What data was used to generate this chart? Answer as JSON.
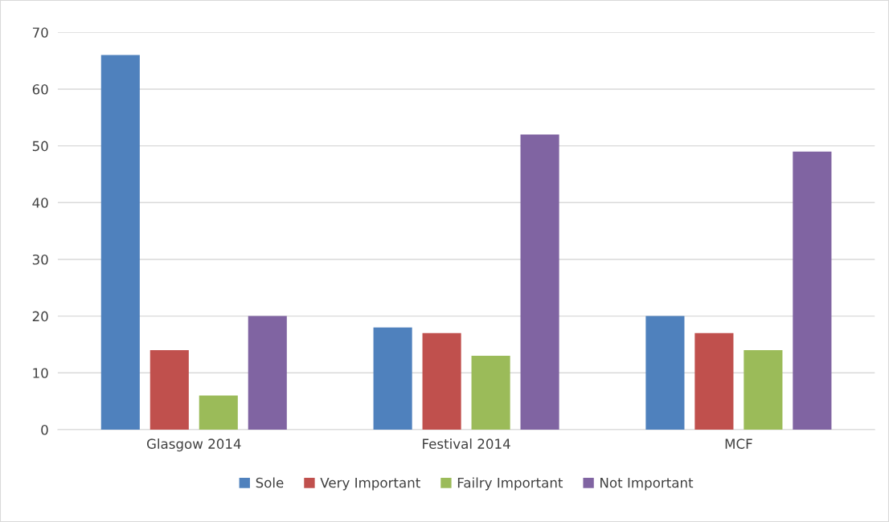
{
  "chart_data": {
    "type": "bar",
    "categories": [
      "Glasgow 2014",
      "Festival 2014",
      "MCF"
    ],
    "series": [
      {
        "name": "Sole",
        "color": "#4f81bd",
        "values": [
          66,
          18,
          20
        ]
      },
      {
        "name": "Very Important",
        "color": "#c0504d",
        "values": [
          14,
          17,
          17
        ]
      },
      {
        "name": "Failry Important",
        "color": "#9bbb59",
        "values": [
          6,
          13,
          14
        ]
      },
      {
        "name": "Not Important",
        "color": "#8064a2",
        "values": [
          20,
          52,
          49
        ]
      }
    ],
    "ylim": [
      0,
      70
    ],
    "yticks": [
      0,
      10,
      20,
      30,
      40,
      50,
      60,
      70
    ],
    "grid": "y",
    "legend": "bottom"
  }
}
